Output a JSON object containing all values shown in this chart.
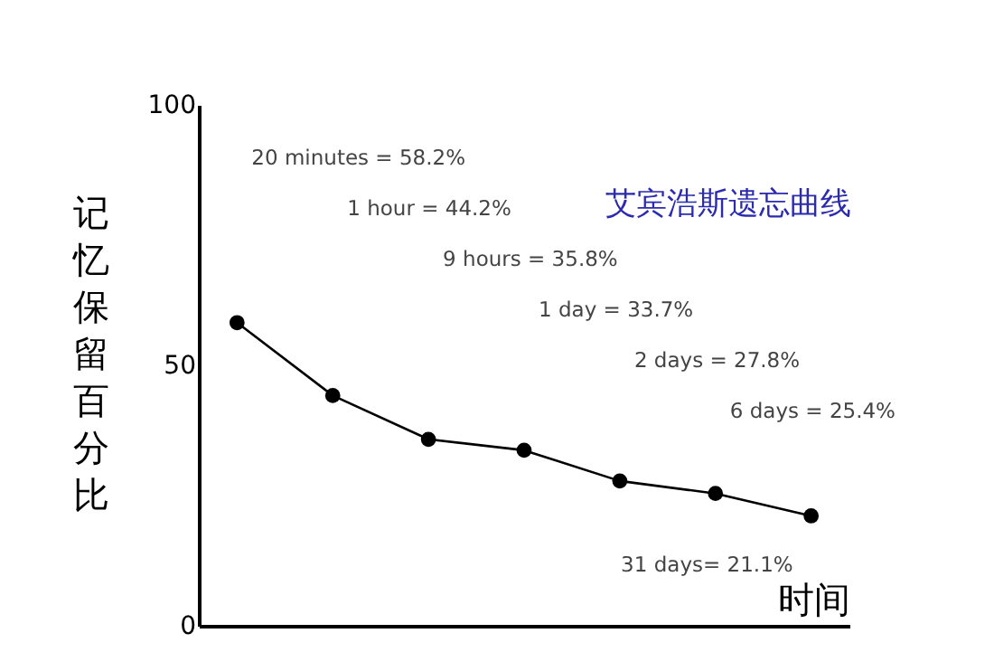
{
  "chart_data": {
    "type": "line",
    "title": "艾宾浩斯遗忘曲线",
    "xlabel": "时间",
    "ylabel": "记忆保留百分比",
    "categories": [
      null,
      null,
      null,
      null,
      null,
      null,
      null
    ],
    "series": [
      {
        "color": "#000000",
        "values": [
          58.2,
          44.2,
          35.8,
          33.7,
          27.8,
          25.4,
          21.1
        ]
      }
    ],
    "ylim": [
      0,
      100
    ],
    "yticks": [
      0,
      50,
      100
    ],
    "grid": false,
    "marker": "circle",
    "line_style": "solid",
    "annotations": [
      "20 minutes = 58.2%",
      "1 hour = 44.2%",
      "9 hours = 35.8%",
      "1 day = 33.7%",
      "2 days = 27.8%",
      "6 days = 25.4%",
      "31 days= 21.1%"
    ]
  }
}
